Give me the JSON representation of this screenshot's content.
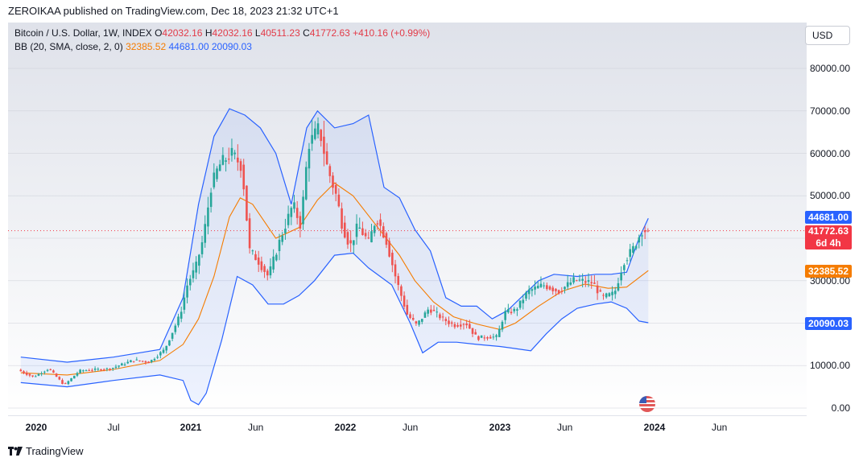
{
  "header": {
    "published": "ZEROIKAA published on TradingView.com, Dec 18, 2023 21:32 UTC+1"
  },
  "legend": {
    "symbol": "Bitcoin / U.S. Dollar, 1W, INDEX",
    "o_label": "O",
    "o_value": "42032.16",
    "h_label": "H",
    "h_value": "42032.16",
    "l_label": "L",
    "l_value": "40511.23",
    "c_label": "C",
    "c_value": "41772.63",
    "change": "+410.16 (+0.99%)",
    "bb_label": "BB (20, SMA, close, 2, 0)",
    "bb_basis": "32385.52",
    "bb_upper": "44681.00",
    "bb_lower": "20090.03"
  },
  "currency_button": "USD",
  "price_labels": {
    "upper": "44681.00",
    "last": "41772.63",
    "countdown": "6d 4h",
    "basis": "32385.52",
    "lower": "20090.03"
  },
  "footer": {
    "brand": "TradingView"
  },
  "colors": {
    "up": "#26a69a",
    "down": "#ef5350",
    "basis": "#f57c00",
    "bands": "#2962ff",
    "fill": "#2962ff"
  },
  "chart_data": {
    "type": "candlestick",
    "interval": "1W",
    "ylim": [
      0,
      80000
    ],
    "y_ticks": [
      "0.00",
      "10000.00",
      "20000.00",
      "30000.00",
      "40000.00",
      "50000.00",
      "60000.00",
      "70000.00",
      "80000.00"
    ],
    "x_ticks": [
      {
        "label": "2020",
        "x": 2020.0,
        "bold": true
      },
      {
        "label": "Jul",
        "x": 2020.5,
        "bold": false
      },
      {
        "label": "2021",
        "x": 2021.0,
        "bold": true
      },
      {
        "label": "Jun",
        "x": 2021.42,
        "bold": false
      },
      {
        "label": "2022",
        "x": 2022.0,
        "bold": true
      },
      {
        "label": "Jun",
        "x": 2022.42,
        "bold": false
      },
      {
        "label": "2023",
        "x": 2023.0,
        "bold": true
      },
      {
        "label": "Jun",
        "x": 2023.42,
        "bold": false
      },
      {
        "label": "2024",
        "x": 2024.0,
        "bold": true
      },
      {
        "label": "Jun",
        "x": 2024.42,
        "bold": false
      }
    ],
    "xlim": [
      2019.9,
      2024.9
    ],
    "last_price": 41772.63,
    "path": [
      [
        2019.9,
        9000
      ],
      [
        2020.0,
        7300
      ],
      [
        2020.1,
        9300
      ],
      [
        2020.2,
        5400
      ],
      [
        2020.3,
        8800
      ],
      [
        2020.5,
        9300
      ],
      [
        2020.65,
        11300
      ],
      [
        2020.75,
        10800
      ],
      [
        2020.85,
        13800
      ],
      [
        2020.95,
        22000
      ],
      [
        2021.0,
        29500
      ],
      [
        2021.05,
        33000
      ],
      [
        2021.1,
        40000
      ],
      [
        2021.15,
        52000
      ],
      [
        2021.2,
        57000
      ],
      [
        2021.28,
        60000
      ],
      [
        2021.35,
        57000
      ],
      [
        2021.4,
        37000
      ],
      [
        2021.45,
        35000
      ],
      [
        2021.52,
        31000
      ],
      [
        2021.6,
        40000
      ],
      [
        2021.68,
        48000
      ],
      [
        2021.73,
        43000
      ],
      [
        2021.78,
        62000
      ],
      [
        2021.85,
        66000
      ],
      [
        2021.9,
        57000
      ],
      [
        2021.96,
        50000
      ],
      [
        2022.0,
        43000
      ],
      [
        2022.05,
        38000
      ],
      [
        2022.1,
        43000
      ],
      [
        2022.17,
        39000
      ],
      [
        2022.22,
        45000
      ],
      [
        2022.28,
        40000
      ],
      [
        2022.35,
        30000
      ],
      [
        2022.42,
        22000
      ],
      [
        2022.48,
        19500
      ],
      [
        2022.56,
        23500
      ],
      [
        2022.65,
        21000
      ],
      [
        2022.72,
        19500
      ],
      [
        2022.8,
        20000
      ],
      [
        2022.87,
        16500
      ],
      [
        2022.95,
        16800
      ],
      [
        2023.0,
        16700
      ],
      [
        2023.05,
        22500
      ],
      [
        2023.12,
        23000
      ],
      [
        2023.2,
        27500
      ],
      [
        2023.3,
        29000
      ],
      [
        2023.4,
        27500
      ],
      [
        2023.5,
        30200
      ],
      [
        2023.62,
        29500
      ],
      [
        2023.68,
        26000
      ],
      [
        2023.76,
        27000
      ],
      [
        2023.82,
        34500
      ],
      [
        2023.88,
        37500
      ],
      [
        2023.94,
        42000
      ],
      [
        2023.96,
        41772.63
      ]
    ],
    "basis": [
      [
        2019.9,
        8300
      ],
      [
        2020.2,
        7800
      ],
      [
        2020.5,
        9100
      ],
      [
        2020.8,
        11200
      ],
      [
        2020.95,
        15000
      ],
      [
        2021.05,
        21000
      ],
      [
        2021.15,
        31000
      ],
      [
        2021.25,
        45000
      ],
      [
        2021.32,
        49500
      ],
      [
        2021.4,
        48000
      ],
      [
        2021.55,
        40000
      ],
      [
        2021.7,
        42500
      ],
      [
        2021.82,
        49000
      ],
      [
        2021.93,
        53000
      ],
      [
        2022.05,
        50000
      ],
      [
        2022.2,
        43000
      ],
      [
        2022.35,
        36000
      ],
      [
        2022.45,
        30000
      ],
      [
        2022.57,
        25000
      ],
      [
        2022.7,
        21500
      ],
      [
        2022.85,
        19800
      ],
      [
        2023.0,
        18500
      ],
      [
        2023.1,
        20000
      ],
      [
        2023.25,
        24000
      ],
      [
        2023.4,
        27500
      ],
      [
        2023.55,
        29200
      ],
      [
        2023.7,
        28200
      ],
      [
        2023.82,
        28500
      ],
      [
        2023.96,
        32385.52
      ]
    ],
    "upper": [
      [
        2019.9,
        12000
      ],
      [
        2020.2,
        10800
      ],
      [
        2020.5,
        12000
      ],
      [
        2020.8,
        13800
      ],
      [
        2020.95,
        26000
      ],
      [
        2021.05,
        48000
      ],
      [
        2021.15,
        64000
      ],
      [
        2021.25,
        70500
      ],
      [
        2021.35,
        69000
      ],
      [
        2021.45,
        66000
      ],
      [
        2021.55,
        60000
      ],
      [
        2021.65,
        48000
      ],
      [
        2021.75,
        66000
      ],
      [
        2021.82,
        70000
      ],
      [
        2021.93,
        66000
      ],
      [
        2022.05,
        67000
      ],
      [
        2022.15,
        69000
      ],
      [
        2022.25,
        52000
      ],
      [
        2022.35,
        49500
      ],
      [
        2022.45,
        42000
      ],
      [
        2022.55,
        37000
      ],
      [
        2022.65,
        26000
      ],
      [
        2022.75,
        24000
      ],
      [
        2022.85,
        24000
      ],
      [
        2022.95,
        21000
      ],
      [
        2023.05,
        23000
      ],
      [
        2023.15,
        26500
      ],
      [
        2023.25,
        30000
      ],
      [
        2023.35,
        31500
      ],
      [
        2023.5,
        31000
      ],
      [
        2023.62,
        31500
      ],
      [
        2023.72,
        31500
      ],
      [
        2023.82,
        32000
      ],
      [
        2023.9,
        40000
      ],
      [
        2023.96,
        44681
      ]
    ],
    "lower": [
      [
        2019.9,
        6000
      ],
      [
        2020.2,
        5000
      ],
      [
        2020.5,
        6500
      ],
      [
        2020.8,
        7800
      ],
      [
        2020.95,
        6500
      ],
      [
        2021.0,
        1800
      ],
      [
        2021.05,
        800
      ],
      [
        2021.1,
        3500
      ],
      [
        2021.2,
        16000
      ],
      [
        2021.3,
        31000
      ],
      [
        2021.4,
        29000
      ],
      [
        2021.5,
        24500
      ],
      [
        2021.6,
        24500
      ],
      [
        2021.7,
        26500
      ],
      [
        2021.8,
        30000
      ],
      [
        2021.93,
        36000
      ],
      [
        2022.05,
        36500
      ],
      [
        2022.15,
        33000
      ],
      [
        2022.3,
        29000
      ],
      [
        2022.42,
        20000
      ],
      [
        2022.5,
        13000
      ],
      [
        2022.6,
        15500
      ],
      [
        2022.72,
        15500
      ],
      [
        2022.85,
        15000
      ],
      [
        2023.0,
        14500
      ],
      [
        2023.1,
        14000
      ],
      [
        2023.2,
        13500
      ],
      [
        2023.3,
        17500
      ],
      [
        2023.4,
        21000
      ],
      [
        2023.5,
        23500
      ],
      [
        2023.62,
        24500
      ],
      [
        2023.72,
        25000
      ],
      [
        2023.82,
        23500
      ],
      [
        2023.9,
        20500
      ],
      [
        2023.96,
        20090
      ]
    ]
  }
}
